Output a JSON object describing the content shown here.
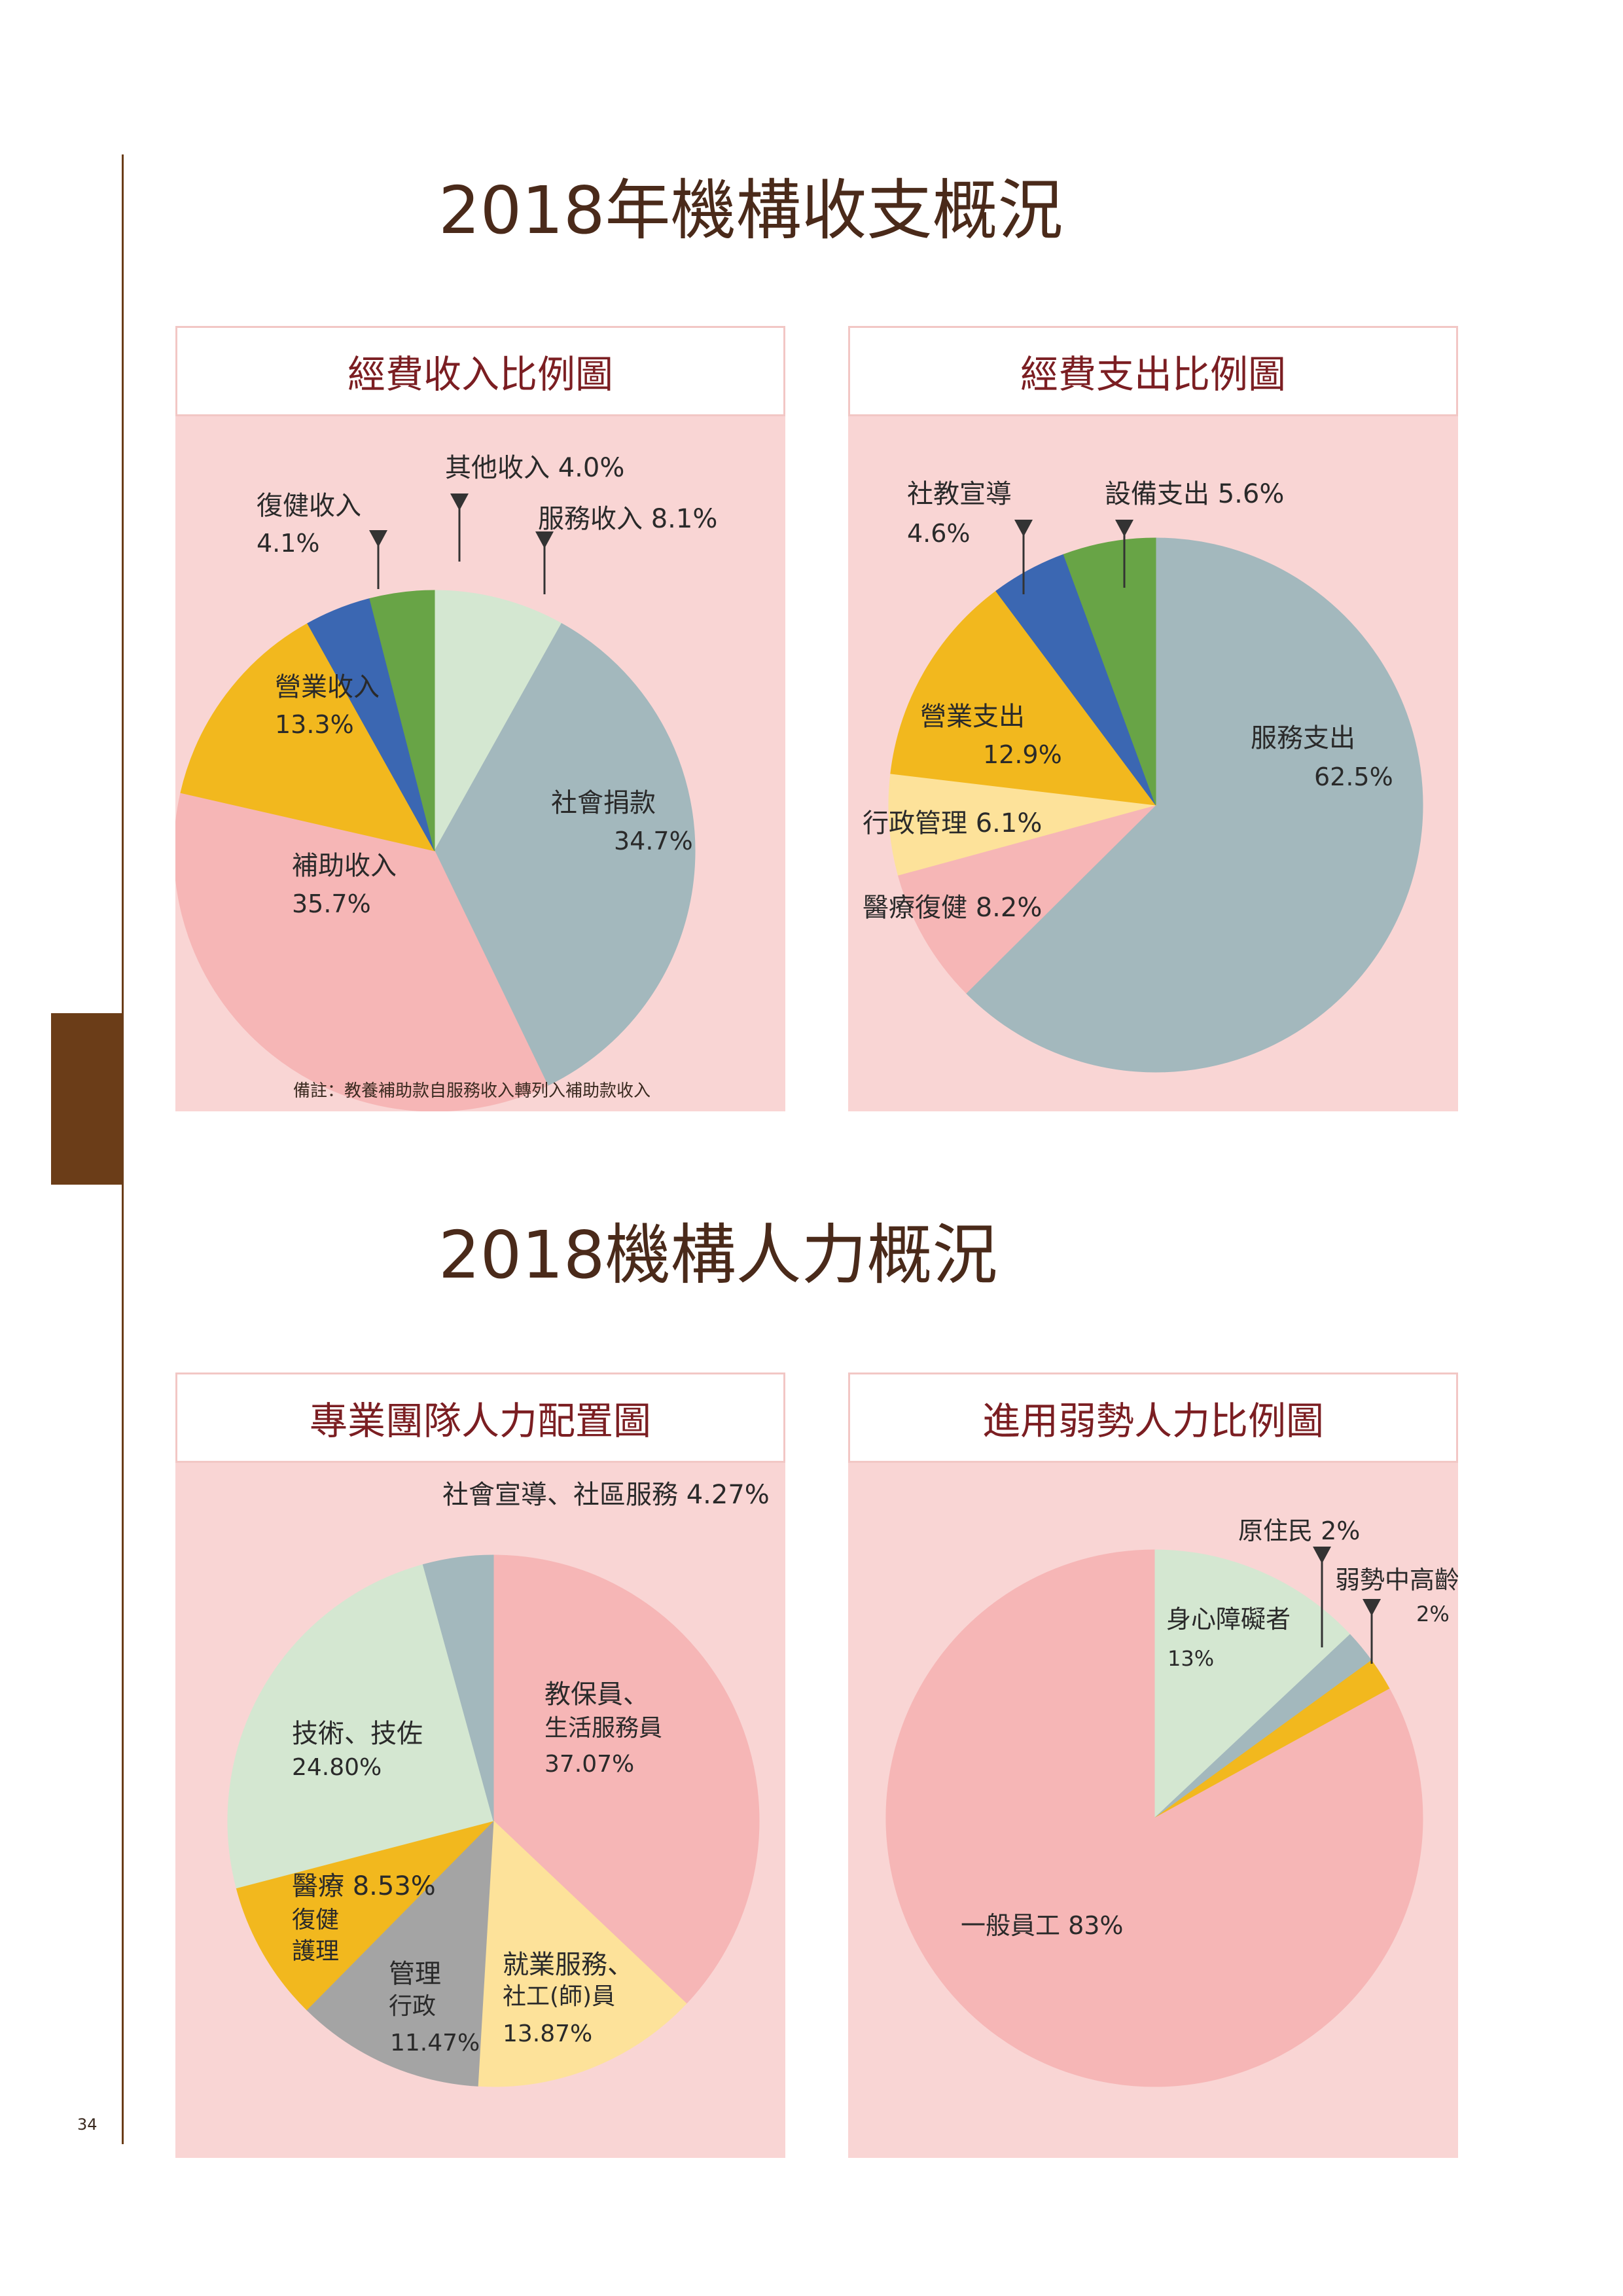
{
  "page_number": "34",
  "section1_title": "2018年機構收支概況",
  "section2_title": "2018機構人力概況",
  "note": "備註：教養補助款自服務收入轉列入補助款收入",
  "chart_data": [
    {
      "type": "pie",
      "title": "經費收入比例圖",
      "slices": [
        {
          "name": "服務收入",
          "value": 8.1,
          "label": "服務收入 8.1%",
          "color": "#d4e7d1"
        },
        {
          "name": "社會捐款",
          "value": 34.7,
          "label1": "社會捐款",
          "label2": "34.7%",
          "color": "#a3b8bd"
        },
        {
          "name": "補助收入",
          "value": 35.7,
          "label1": "補助收入",
          "label2": "35.7%",
          "color": "#f6b6b6"
        },
        {
          "name": "營業收入",
          "value": 13.3,
          "label1": "營業收入",
          "label2": "13.3%",
          "color": "#f2b81e"
        },
        {
          "name": "復健收入",
          "value": 4.1,
          "label1": "復健收入",
          "label2": "4.1%",
          "color": "#3b67b2"
        },
        {
          "name": "其他收入",
          "value": 4.0,
          "label": "其他收入 4.0%",
          "color": "#68a446"
        }
      ]
    },
    {
      "type": "pie",
      "title": "經費支出比例圖",
      "slices": [
        {
          "name": "服務支出",
          "value": 62.5,
          "label1": "服務支出",
          "label2": "62.5%",
          "color": "#a3b8bd"
        },
        {
          "name": "醫療復健",
          "value": 8.2,
          "label": "醫療復健 8.2%",
          "color": "#f6b6b6"
        },
        {
          "name": "行政管理",
          "value": 6.1,
          "label": "行政管理 6.1%",
          "color": "#fde29a"
        },
        {
          "name": "營業支出",
          "value": 12.9,
          "label1": "營業支出",
          "label2": "12.9%",
          "color": "#f2b81e"
        },
        {
          "name": "社教宣導",
          "value": 4.6,
          "label1": "社教宣導",
          "label2": "4.6%",
          "color": "#3b67b2"
        },
        {
          "name": "設備支出",
          "value": 5.6,
          "label": "設備支出 5.6%",
          "color": "#68a446"
        }
      ]
    },
    {
      "type": "pie",
      "title": "專業團隊人力配置圖",
      "slices": [
        {
          "name": "教保員、生活服務員",
          "value": 37.07,
          "label1": "教保員、",
          "label2": "生活服務員",
          "label3": "37.07%",
          "color": "#f6b6b6"
        },
        {
          "name": "就業服務、社工(師)員",
          "value": 13.87,
          "label1": "就業服務、",
          "label2": "社工(師)員",
          "label3": "13.87%",
          "color": "#fde29a"
        },
        {
          "name": "管理行政",
          "value": 11.47,
          "label1": "管理",
          "label2": "行政",
          "label3": "11.47%",
          "color": "#a4a4a4"
        },
        {
          "name": "醫療復健護理",
          "value": 8.53,
          "label1": "醫療 8.53%",
          "label2": "復健",
          "label3": "護理",
          "color": "#f2b81e"
        },
        {
          "name": "技術、技佐",
          "value": 24.8,
          "label1": "技術、技佐",
          "label2": "24.80%",
          "color": "#d4e7d1"
        },
        {
          "name": "社會宣導、社區服務",
          "value": 4.27,
          "label": "社會宣導、社區服務 4.27%",
          "color": "#a3b8bd"
        }
      ]
    },
    {
      "type": "pie",
      "title": "進用弱勢人力比例圖",
      "slices": [
        {
          "name": "身心障礙者",
          "value": 13,
          "label1": "身心障礙者",
          "label2": "13%",
          "color": "#d4e7d1"
        },
        {
          "name": "原住民",
          "value": 2,
          "label": "原住民 2%",
          "color": "#a3b8bd"
        },
        {
          "name": "弱勢中高齡",
          "value": 2,
          "label1": "弱勢中高齡",
          "label2": "2%",
          "color": "#f2b81e"
        },
        {
          "name": "一般員工",
          "value": 83,
          "label": "一般員工 83%",
          "color": "#f6b6b6"
        }
      ]
    }
  ]
}
